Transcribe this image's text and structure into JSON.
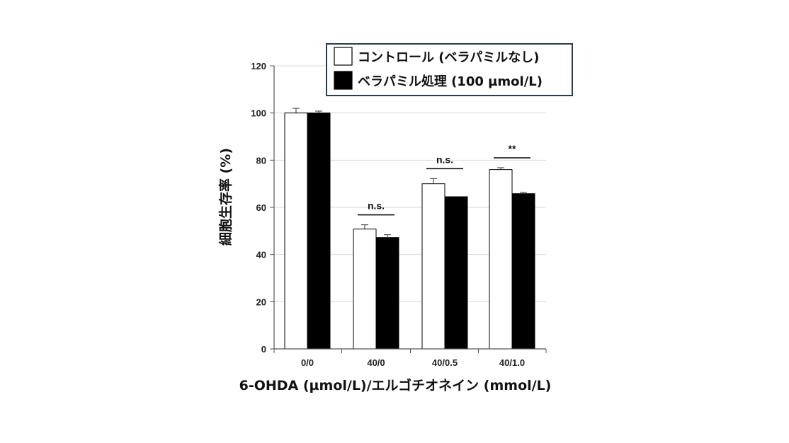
{
  "chart_data": {
    "type": "bar",
    "title": "",
    "xlabel": "6-OHDA (µmol/L)/エルゴチオネイン (mmol/L)",
    "ylabel": "細胞生存率 (%)",
    "ylim": [
      0,
      120
    ],
    "yticks": [
      0,
      20,
      40,
      60,
      80,
      100,
      120
    ],
    "grid": true,
    "legend_position": "top-right",
    "categories": [
      "0/0",
      "40/0",
      "40/0.5",
      "40/1.0"
    ],
    "series": [
      {
        "name": "コントロール (ベラパミルなし)",
        "fill": "#ffffff",
        "values": [
          100,
          50.8,
          70,
          76
        ],
        "errors": [
          2,
          1.8,
          2.2,
          0.8
        ]
      },
      {
        "name": "ベラパミル処理 (100 µmol/L)",
        "fill": "#000000",
        "values": [
          100,
          47.2,
          64.5,
          65.8
        ],
        "errors": [
          0.8,
          1.2,
          0,
          0.6
        ]
      }
    ],
    "annotations": [
      {
        "category": "40/0",
        "text": "n.s."
      },
      {
        "category": "40/0.5",
        "text": "n.s."
      },
      {
        "category": "40/1.0",
        "text": "**"
      }
    ]
  }
}
